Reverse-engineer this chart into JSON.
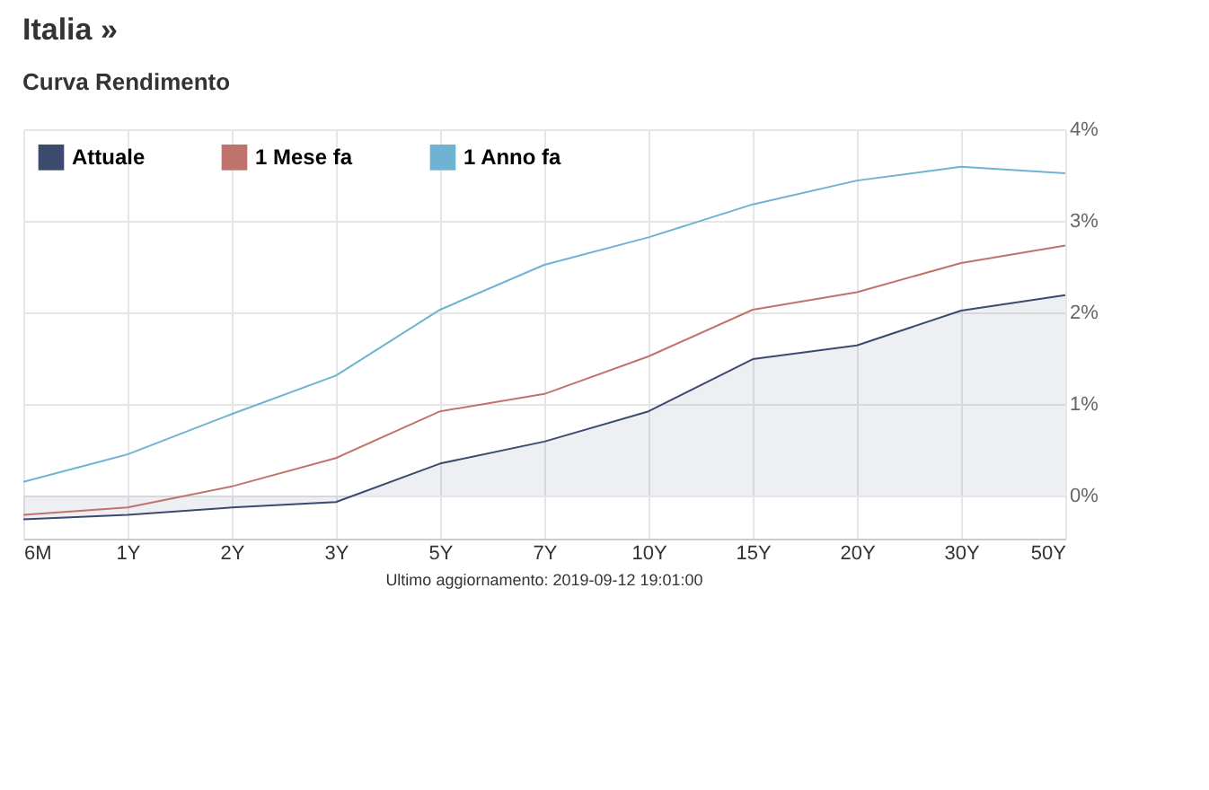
{
  "chart_data": {
    "type": "line",
    "title": "Italia »",
    "subtitle": "Curva Rendimento",
    "categories": [
      "6M",
      "1Y",
      "2Y",
      "3Y",
      "5Y",
      "7Y",
      "10Y",
      "15Y",
      "20Y",
      "30Y",
      "50Y"
    ],
    "series": [
      {
        "name": "Attuale",
        "type": "area",
        "color": "#3c4a6e",
        "values": [
          -0.26,
          -0.21,
          -0.13,
          -0.07,
          0.35,
          0.59,
          0.92,
          1.49,
          1.64,
          2.02,
          2.19
        ]
      },
      {
        "name": "1 Mese fa",
        "color": "#c0736b",
        "values": [
          -0.21,
          -0.13,
          0.1,
          0.41,
          0.92,
          1.11,
          1.52,
          2.03,
          2.22,
          2.54,
          2.73
        ]
      },
      {
        "name": "1 Anno fa",
        "color": "#6fb3d2",
        "values": [
          0.15,
          0.45,
          0.89,
          1.31,
          2.03,
          2.52,
          2.82,
          3.18,
          3.44,
          3.59,
          3.52
        ]
      }
    ],
    "ylim": [
      -0.47,
      4
    ],
    "yticks": [
      {
        "value": 0,
        "label": "0%"
      },
      {
        "value": 1,
        "label": "1%"
      },
      {
        "value": 2,
        "label": "2%"
      },
      {
        "value": 3,
        "label": "3%"
      },
      {
        "value": 4,
        "label": "4%"
      }
    ],
    "grid": true,
    "legend": "top left",
    "marker": "none",
    "line_style": "solid",
    "annotations": [
      "Ultimo aggiornamento: 2019-09-12 19:01:00"
    ]
  }
}
